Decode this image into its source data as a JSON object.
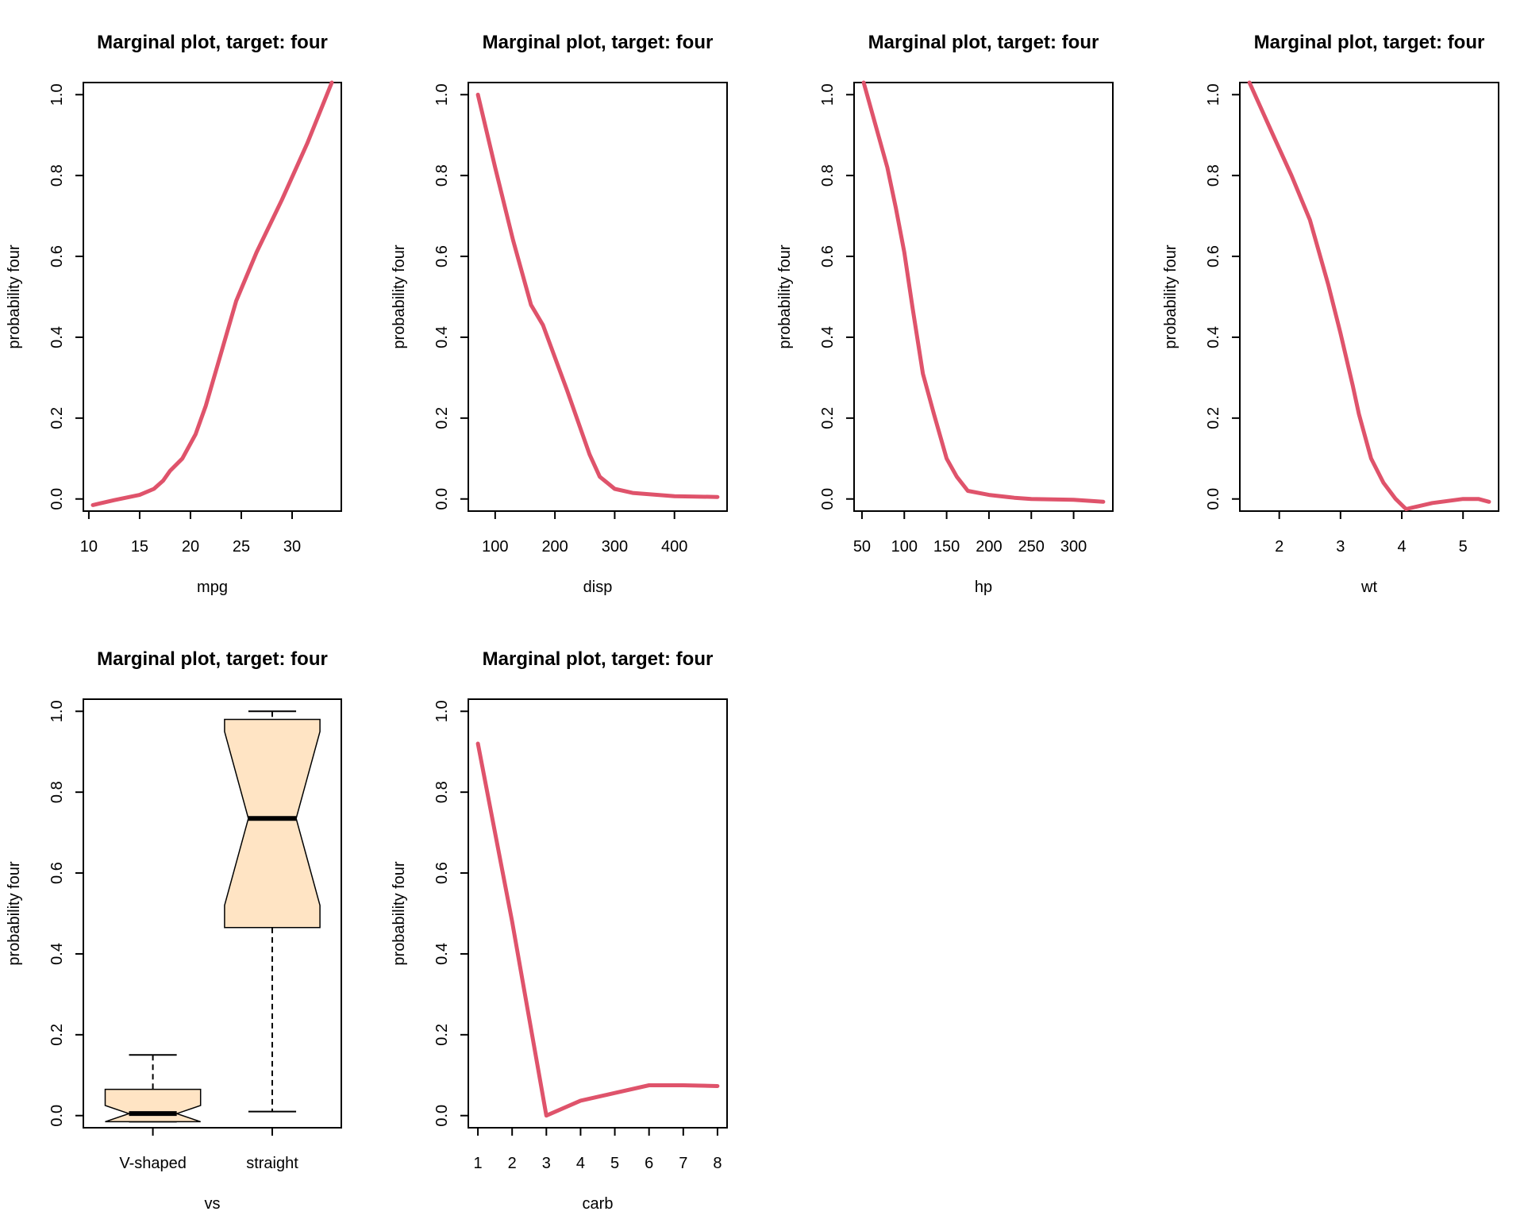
{
  "colors": {
    "curve": "#DF536B",
    "box_fill": "#FFE4C4",
    "ink": "#000000"
  },
  "chart_data": [
    {
      "type": "line",
      "title": "Marginal plot, target: four",
      "xlabel": "mpg",
      "ylabel": "probability four",
      "xlim": [
        10.4,
        33.9
      ],
      "ylim": [
        -0.03,
        1.03
      ],
      "xticks": [
        10,
        15,
        20,
        25,
        30
      ],
      "yticks": [
        0.0,
        0.2,
        0.4,
        0.6,
        0.8,
        1.0
      ],
      "ytick_labels": [
        "0.0",
        "0.2",
        "0.4",
        "0.6",
        "0.8",
        "1.0"
      ],
      "series": [
        {
          "x": [
            10.4,
            12.5,
            15,
            16.4,
            17.3,
            18,
            19.2,
            20.5,
            21.5,
            23,
            24.5,
            26.5,
            29,
            31.5,
            33.9
          ],
          "y": [
            -0.015,
            -0.003,
            0.01,
            0.025,
            0.045,
            0.07,
            0.1,
            0.16,
            0.23,
            0.36,
            0.49,
            0.61,
            0.74,
            0.88,
            1.03
          ]
        }
      ]
    },
    {
      "type": "line",
      "title": "Marginal plot, target: four",
      "xlabel": "disp",
      "ylabel": "probability four",
      "xlim": [
        71.1,
        472
      ],
      "ylim": [
        -0.03,
        1.03
      ],
      "xticks": [
        100,
        200,
        300,
        400
      ],
      "yticks": [
        0.0,
        0.2,
        0.4,
        0.6,
        0.8,
        1.0
      ],
      "ytick_labels": [
        "0.0",
        "0.2",
        "0.4",
        "0.6",
        "0.8",
        "1.0"
      ],
      "series": [
        {
          "x": [
            71.1,
            100,
            130,
            160,
            180,
            220,
            258,
            275,
            300,
            330,
            400,
            472
          ],
          "y": [
            1.0,
            0.82,
            0.64,
            0.48,
            0.43,
            0.27,
            0.11,
            0.055,
            0.025,
            0.015,
            0.007,
            0.005
          ]
        }
      ]
    },
    {
      "type": "line",
      "title": "Marginal plot, target: four",
      "xlabel": "hp",
      "ylabel": "probability four",
      "xlim": [
        52,
        335
      ],
      "ylim": [
        -0.03,
        1.03
      ],
      "xticks": [
        50,
        100,
        150,
        200,
        250,
        300
      ],
      "yticks": [
        0.0,
        0.2,
        0.4,
        0.6,
        0.8,
        1.0
      ],
      "ytick_labels": [
        "0.0",
        "0.2",
        "0.4",
        "0.6",
        "0.8",
        "1.0"
      ],
      "series": [
        {
          "x": [
            52,
            80,
            90,
            100,
            110,
            122,
            135,
            150,
            162,
            175,
            200,
            230,
            250,
            300,
            335
          ],
          "y": [
            1.03,
            0.82,
            0.72,
            0.61,
            0.47,
            0.31,
            0.21,
            0.1,
            0.055,
            0.02,
            0.01,
            0.003,
            0.0,
            -0.002,
            -0.007
          ]
        }
      ]
    },
    {
      "type": "line",
      "title": "Marginal plot, target: four",
      "xlabel": "wt",
      "ylabel": "probability four",
      "xlim": [
        1.513,
        5.424
      ],
      "ylim": [
        -0.03,
        1.03
      ],
      "xticks": [
        2,
        3,
        4,
        5
      ],
      "yticks": [
        0.0,
        0.2,
        0.4,
        0.6,
        0.8,
        1.0
      ],
      "ytick_labels": [
        "0.0",
        "0.2",
        "0.4",
        "0.6",
        "0.8",
        "1.0"
      ],
      "series": [
        {
          "x": [
            1.513,
            1.9,
            2.2,
            2.5,
            2.8,
            3.0,
            3.2,
            3.3,
            3.5,
            3.7,
            3.9,
            4.07,
            4.5,
            5.0,
            5.25,
            5.424
          ],
          "y": [
            1.03,
            0.9,
            0.8,
            0.69,
            0.53,
            0.41,
            0.28,
            0.21,
            0.1,
            0.04,
            0.0,
            -0.025,
            -0.01,
            0.0,
            0.0,
            -0.007
          ]
        }
      ]
    },
    {
      "type": "box",
      "title": "Marginal plot, target: four",
      "xlabel": "vs",
      "ylabel": "probability four",
      "ylim": [
        -0.03,
        1.03
      ],
      "yticks": [
        0.0,
        0.2,
        0.4,
        0.6,
        0.8,
        1.0
      ],
      "ytick_labels": [
        "0.0",
        "0.2",
        "0.4",
        "0.6",
        "0.8",
        "1.0"
      ],
      "categories": [
        "V-shaped",
        "straight"
      ],
      "boxes": [
        {
          "whisker_low": -0.015,
          "q1": -0.015,
          "median": 0.005,
          "q3": 0.065,
          "whisker_high": 0.15,
          "notch_low": -0.015,
          "notch_high": 0.025
        },
        {
          "whisker_low": 0.01,
          "q1": 0.465,
          "median": 0.735,
          "q3": 0.98,
          "whisker_high": 1.0,
          "notch_low": 0.52,
          "notch_high": 0.95
        }
      ]
    },
    {
      "type": "line",
      "title": "Marginal plot, target: four",
      "xlabel": "carb",
      "ylabel": "probability four",
      "xlim": [
        1,
        8
      ],
      "ylim": [
        -0.03,
        1.03
      ],
      "xticks": [
        1,
        2,
        3,
        4,
        5,
        6,
        7,
        8
      ],
      "yticks": [
        0.0,
        0.2,
        0.4,
        0.6,
        0.8,
        1.0
      ],
      "ytick_labels": [
        "0.0",
        "0.2",
        "0.4",
        "0.6",
        "0.8",
        "1.0"
      ],
      "series": [
        {
          "x": [
            1,
            2,
            3,
            4,
            5,
            6,
            7,
            8
          ],
          "y": [
            0.92,
            0.48,
            0.0,
            0.037,
            0.056,
            0.075,
            0.075,
            0.073
          ]
        }
      ]
    }
  ]
}
